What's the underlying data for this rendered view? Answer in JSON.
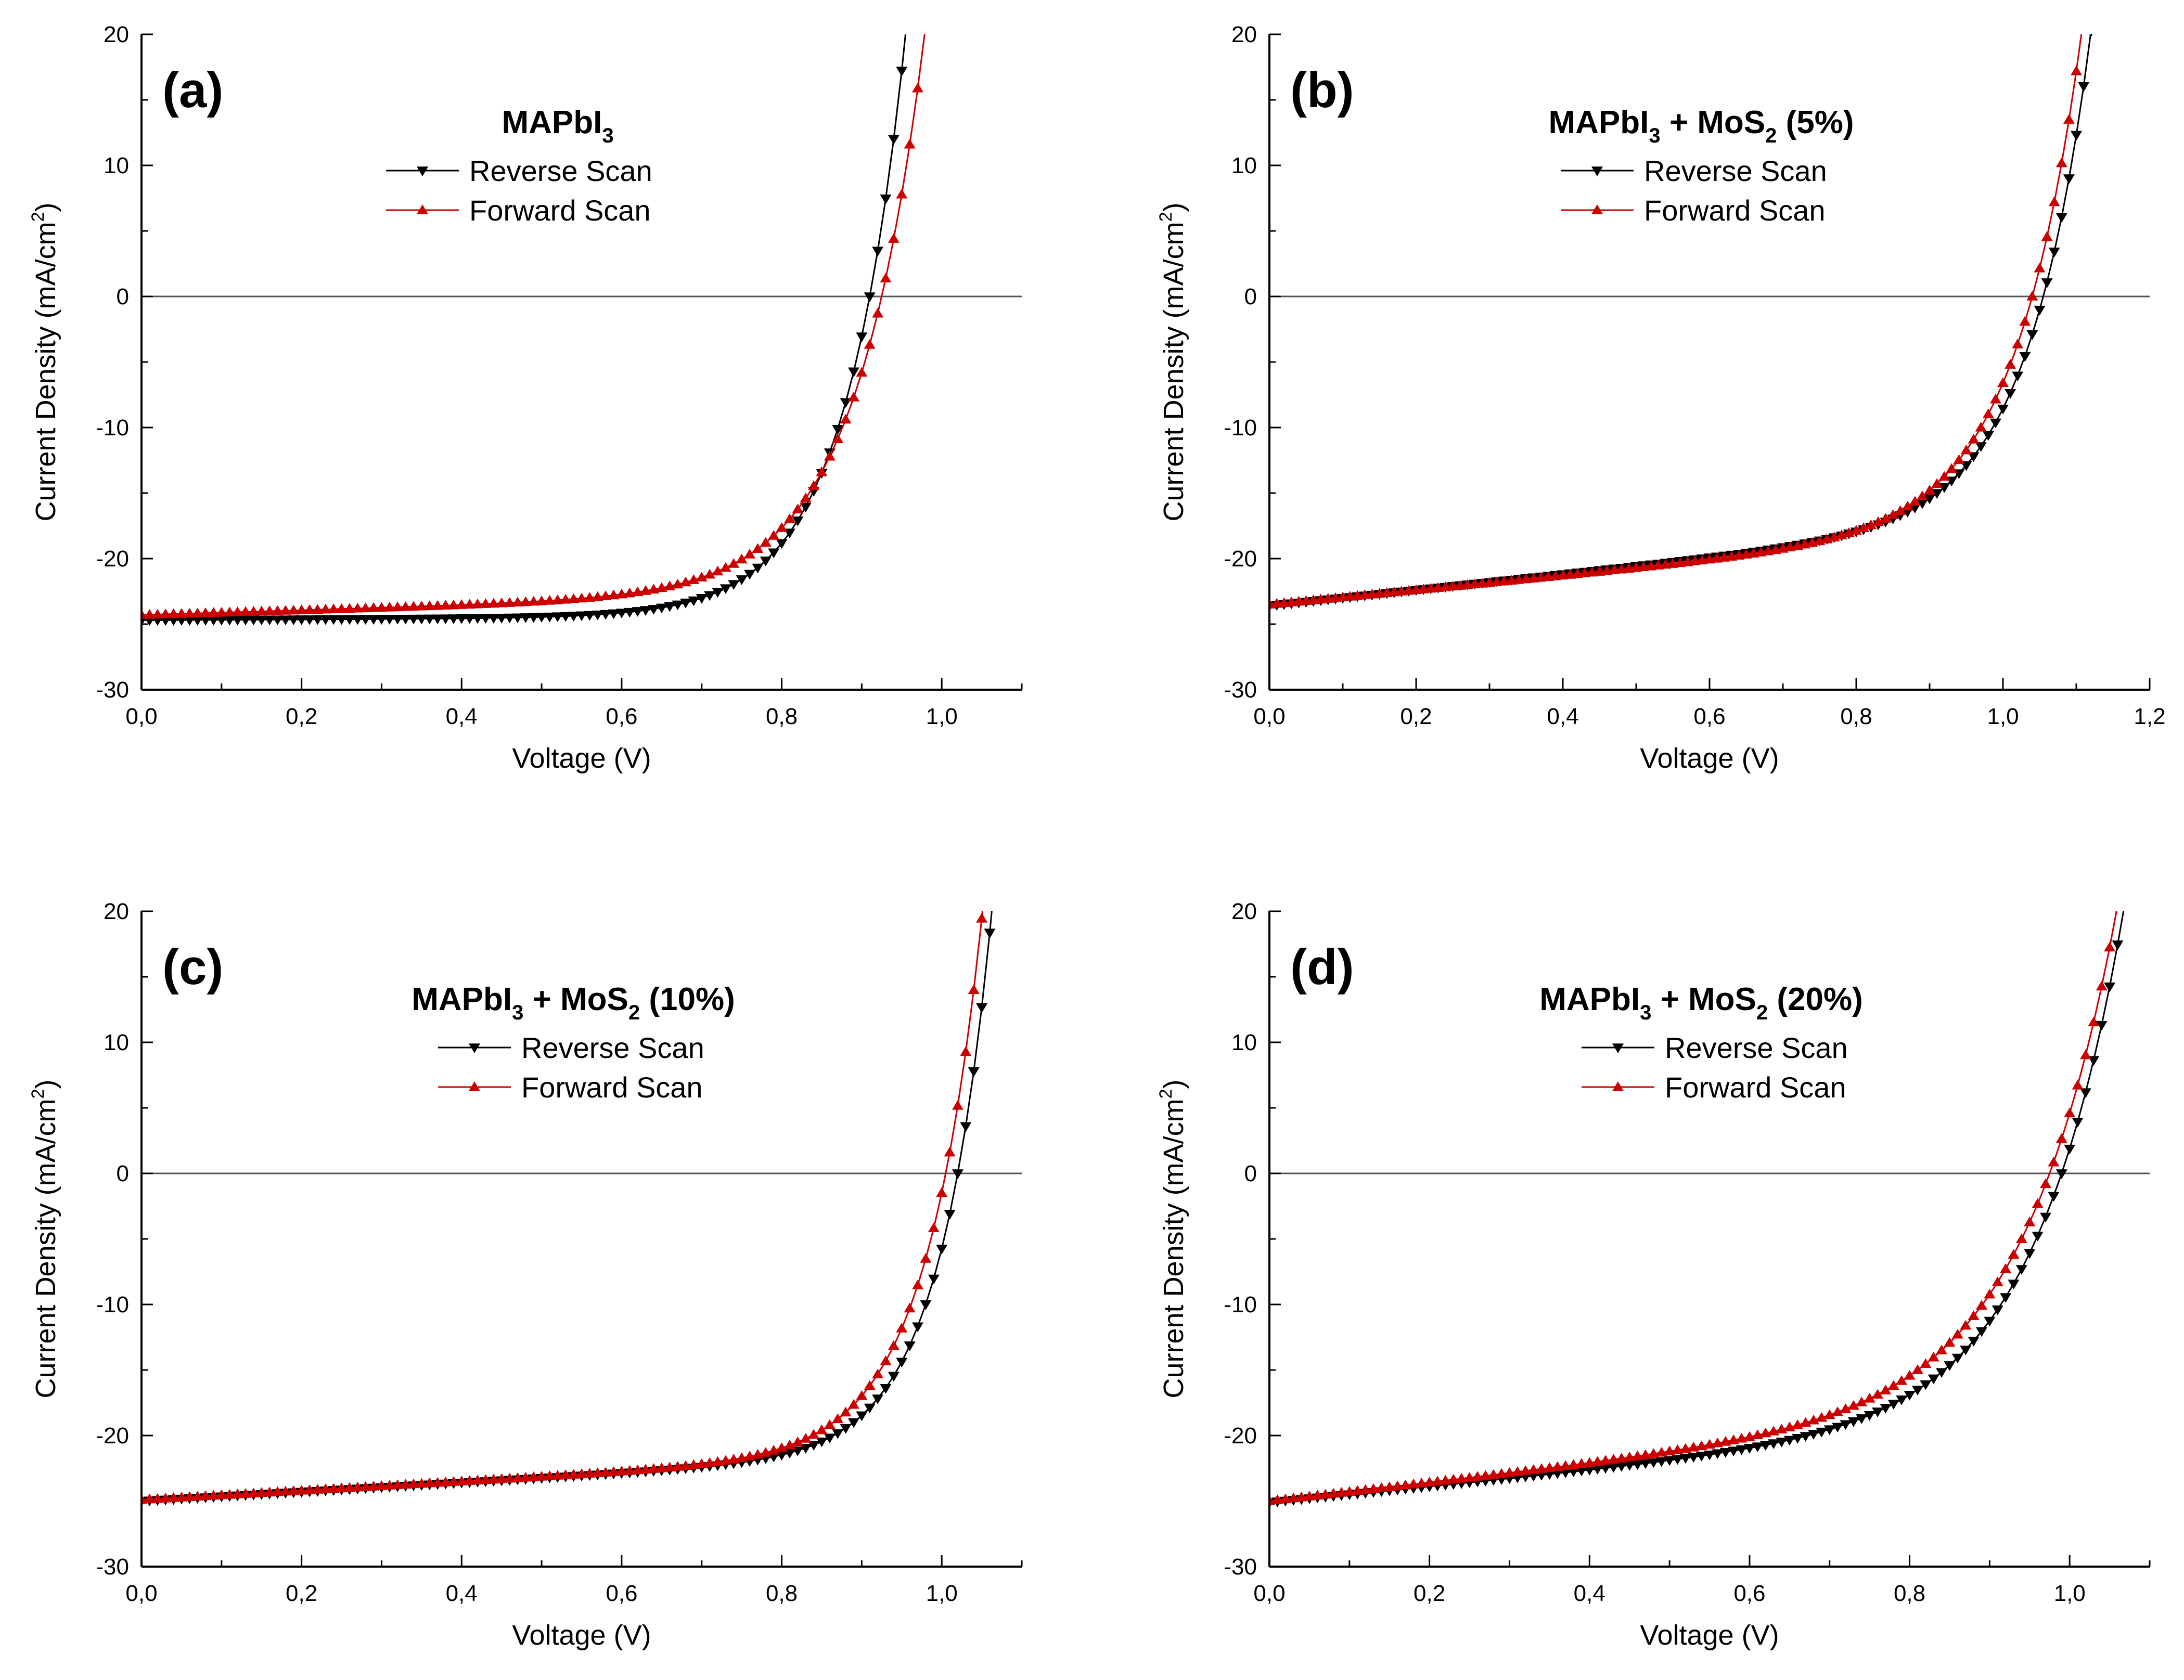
{
  "chart_data": [
    {
      "type": "line",
      "panel": "(a)",
      "title": {
        "base": "MAPbI",
        "sub1": "3",
        "mid": "",
        "sub2": "",
        "end": ""
      },
      "xlabel": "Voltage (V)",
      "ylabel": {
        "pre": "Current Density (mA/cm",
        "sup": "2",
        "post": ")"
      },
      "xlim": [
        0,
        1.1
      ],
      "ylim": [
        -30,
        20
      ],
      "xticks": [
        "0,0",
        "0,2",
        "0,4",
        "0,6",
        "0,8",
        "1,0"
      ],
      "yticks": [
        "-30",
        "-20",
        "-10",
        "0",
        "10",
        "20"
      ],
      "reference_line_y": 0,
      "series": [
        {
          "name": "Reverse Scan",
          "color": "#000000",
          "marker": "triangle-down",
          "jsc": 24.7,
          "voc": 0.91,
          "knee": 0.075,
          "slope": 0.3
        },
        {
          "name": "Forward Scan",
          "color": "#cc0000",
          "marker": "triangle-up",
          "jsc": 24.3,
          "voc": 0.925,
          "knee": 0.085,
          "slope": 1.8
        }
      ]
    },
    {
      "type": "line",
      "panel": "(b)",
      "title": {
        "base": "MAPbI",
        "sub1": "3",
        "mid": " + MoS",
        "sub2": "2",
        "end": " (5%)"
      },
      "xlabel": "Voltage (V)",
      "ylabel": {
        "pre": "Current Density (mA/cm",
        "sup": "2",
        "post": ")"
      },
      "xlim": [
        0,
        1.2
      ],
      "ylim": [
        -30,
        20
      ],
      "xticks": [
        "0,0",
        "0,2",
        "0,4",
        "0,6",
        "0,8",
        "1,0",
        "1,2"
      ],
      "yticks": [
        "-30",
        "-20",
        "-10",
        "0",
        "10",
        "20"
      ],
      "reference_line_y": 0,
      "series": [
        {
          "name": "Reverse Scan",
          "color": "#000000",
          "marker": "triangle-down",
          "jsc": 23.6,
          "voc": 1.055,
          "knee": 0.085,
          "slope": 6.0
        },
        {
          "name": "Forward Scan",
          "color": "#cc0000",
          "marker": "triangle-up",
          "jsc": 23.5,
          "voc": 1.04,
          "knee": 0.09,
          "slope": 5.5
        }
      ]
    },
    {
      "type": "line",
      "panel": "(c)",
      "title": {
        "base": "MAPbI",
        "sub1": "3",
        "mid": " + MoS",
        "sub2": "2",
        "end": " (10%)"
      },
      "xlabel": "Voltage (V)",
      "ylabel": {
        "pre": "Current Density (mA/cm",
        "sup": "2",
        "post": ")"
      },
      "xlim": [
        0,
        1.1
      ],
      "ylim": [
        -30,
        20
      ],
      "xticks": [
        "0,0",
        "0,2",
        "0,4",
        "0,6",
        "0,8",
        "1,0"
      ],
      "yticks": [
        "-30",
        "-20",
        "-10",
        "0",
        "10",
        "20"
      ],
      "reference_line_y": 0,
      "series": [
        {
          "name": "Reverse Scan",
          "color": "#000000",
          "marker": "triangle-down",
          "jsc": 25.0,
          "voc": 1.02,
          "knee": 0.065,
          "slope": 3.5
        },
        {
          "name": "Forward Scan",
          "color": "#cc0000",
          "marker": "triangle-up",
          "jsc": 24.9,
          "voc": 1.005,
          "knee": 0.07,
          "slope": 3.5
        }
      ]
    },
    {
      "type": "line",
      "panel": "(d)",
      "title": {
        "base": "MAPbI",
        "sub1": "3",
        "mid": " + MoS",
        "sub2": "2",
        "end": " (20%)"
      },
      "xlabel": "Voltage (V)",
      "ylabel": {
        "pre": "Current Density (mA/cm",
        "sup": "2",
        "post": ")"
      },
      "xlim": [
        0,
        1.1
      ],
      "ylim": [
        -30,
        20
      ],
      "xticks": [
        "0,0",
        "0,2",
        "0,4",
        "0,6",
        "0,8",
        "1,0"
      ],
      "yticks": [
        "-30",
        "-20",
        "-10",
        "0",
        "10",
        "20"
      ],
      "reference_line_y": 0,
      "series": [
        {
          "name": "Reverse Scan",
          "color": "#000000",
          "marker": "triangle-down",
          "jsc": 25.1,
          "voc": 0.99,
          "knee": 0.11,
          "slope": 6.0
        },
        {
          "name": "Forward Scan",
          "color": "#cc0000",
          "marker": "triangle-up",
          "jsc": 25.0,
          "voc": 0.975,
          "knee": 0.115,
          "slope": 7.0
        }
      ]
    }
  ]
}
